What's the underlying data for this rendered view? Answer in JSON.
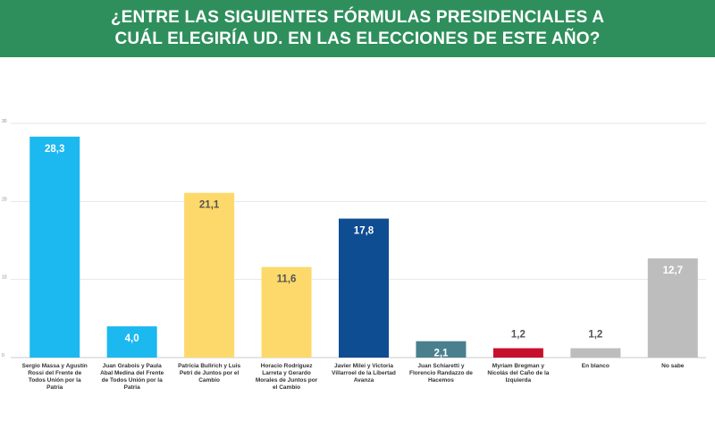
{
  "header": {
    "title_line1": "¿ENTRE LAS SIGUIENTES FÓRMULAS PRESIDENCIALES A",
    "title_line2": "CUÁL ELEGIRÍA UD. EN LAS ELECCIONES DE ESTE AÑO?"
  },
  "chart_data": {
    "type": "bar",
    "title": "¿ENTRE LAS SIGUIENTES FÓRMULAS PRESIDENCIALES A CUÁL ELEGIRÍA UD. EN LAS ELECCIONES DE ESTE AÑO?",
    "xlabel": "",
    "ylabel": "",
    "ylim": [
      0,
      30
    ],
    "yticks": [
      "0",
      "10",
      "20",
      "30"
    ],
    "grid": true,
    "legend": "none",
    "categories": [
      [
        "Sergio Massa y Agustín",
        "Rossi del Frente de",
        "Todos Unión por la",
        "Patria"
      ],
      [
        "Juan Grabois y Paula",
        "Abal Medina del Frente",
        "de Todos Unión por la",
        "Patria"
      ],
      [
        "Patricia Bullrich y Luis",
        "Petri de Juntos por el",
        "Cambio"
      ],
      [
        "Horacio Rodríguez",
        "Larreta y Gerardo",
        "Morales de Juntos por",
        "el Cambio"
      ],
      [
        "Javier Milei y Victoria",
        "Villarroel de la Libertad",
        "Avanza"
      ],
      [
        "Juan Schiaretti y",
        "Florencio Randazzo de",
        "Hacemos"
      ],
      [
        "Myriam Bregman y",
        "Nicolás del Caño de la",
        "Izquierda"
      ],
      [
        "En blanco"
      ],
      [
        "No sabe"
      ]
    ],
    "values": [
      28.3,
      4.0,
      21.1,
      11.6,
      17.8,
      2.1,
      1.2,
      1.2,
      12.7
    ],
    "value_labels": [
      "28,3",
      "4,0",
      "21,1",
      "11,6",
      "17,8",
      "2,1",
      "1,2",
      "1,2",
      "12,7"
    ],
    "colors": [
      "#1cb8f0",
      "#1cb8f0",
      "#fcd96a",
      "#fcd96a",
      "#0e4d92",
      "#4a7f8e",
      "#c8102e",
      "#bdbdbd",
      "#bdbdbd"
    ],
    "value_label_colors": [
      "#ffffff",
      "#ffffff",
      "#555555",
      "#555555",
      "#ffffff",
      "#ffffff",
      "#555555",
      "#555555",
      "#ffffff"
    ]
  }
}
